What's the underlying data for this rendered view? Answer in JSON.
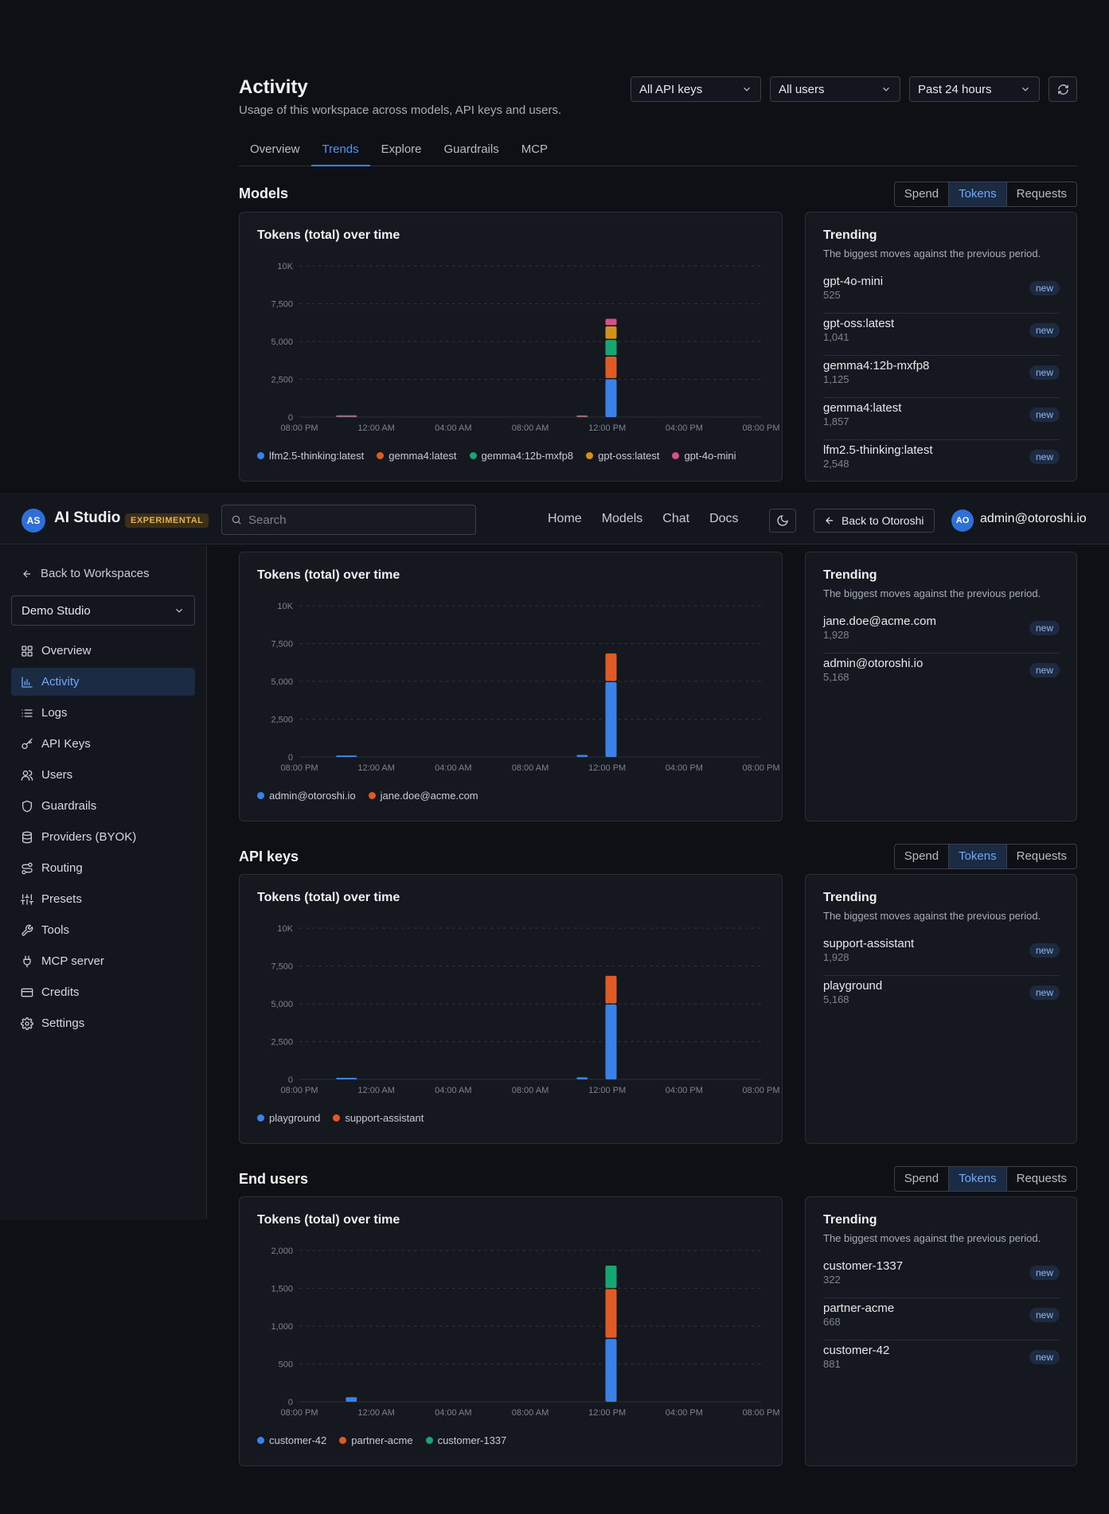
{
  "header": {
    "title": "Activity",
    "subtitle": "Usage of this workspace across models, API keys and users.",
    "filters": {
      "api_keys": "All API keys",
      "users": "All users",
      "range": "Past 24 hours"
    }
  },
  "tabs": [
    {
      "label": "Overview",
      "active": false
    },
    {
      "label": "Trends",
      "active": true
    },
    {
      "label": "Explore",
      "active": false
    },
    {
      "label": "Guardrails",
      "active": false
    },
    {
      "label": "MCP",
      "active": false
    }
  ],
  "segment": {
    "spend": "Spend",
    "tokens": "Tokens",
    "requests": "Requests",
    "selected": "Tokens"
  },
  "common": {
    "chart_title": "Tokens (total) over time",
    "trending_title": "Trending",
    "trending_sub": "The biggest moves against the previous period.",
    "badge": "new"
  },
  "sections": {
    "models": {
      "title": "Models",
      "trending": [
        {
          "name": "gpt-4o-mini",
          "value": "525"
        },
        {
          "name": "gpt-oss:latest",
          "value": "1,041"
        },
        {
          "name": "gemma4:12b-mxfp8",
          "value": "1,125"
        },
        {
          "name": "gemma4:latest",
          "value": "1,857"
        },
        {
          "name": "lfm2.5-thinking:latest",
          "value": "2,548"
        }
      ]
    },
    "users": {
      "trending": [
        {
          "name": "jane.doe@acme.com",
          "value": "1,928"
        },
        {
          "name": "admin@otoroshi.io",
          "value": "5,168"
        }
      ]
    },
    "api_keys": {
      "title": "API keys",
      "trending": [
        {
          "name": "support-assistant",
          "value": "1,928"
        },
        {
          "name": "playground",
          "value": "5,168"
        }
      ]
    },
    "end_users": {
      "title": "End users",
      "trending": [
        {
          "name": "customer-1337",
          "value": "322"
        },
        {
          "name": "partner-acme",
          "value": "668"
        },
        {
          "name": "customer-42",
          "value": "881"
        }
      ]
    }
  },
  "chart_data": [
    {
      "type": "bar",
      "stacked": true,
      "title": "Tokens (total) over time",
      "x_ticks": [
        "08:00 PM",
        "12:00 AM",
        "04:00 AM",
        "08:00 AM",
        "12:00 PM",
        "04:00 PM",
        "08:00 PM"
      ],
      "y_ticks": [
        "0",
        "2,500",
        "5,000",
        "7,500",
        "10K"
      ],
      "ylim": [
        0,
        10000
      ],
      "grid": true,
      "legend_position": "bottom",
      "series": [
        {
          "name": "lfm2.5-thinking:latest",
          "color": "#3b82e6",
          "points": [
            {
              "h": 2.2,
              "v": 10
            },
            {
              "h": 2.7,
              "v": 10
            },
            {
              "h": 14.7,
              "v": 5
            },
            {
              "h": 16.2,
              "v": 2500
            }
          ]
        },
        {
          "name": "gemma4:latest",
          "color": "#e05a26",
          "points": [
            {
              "h": 2.2,
              "v": 40
            },
            {
              "h": 2.7,
              "v": 40
            },
            {
              "h": 14.7,
              "v": 100
            },
            {
              "h": 16.2,
              "v": 1500
            }
          ]
        },
        {
          "name": "gemma4:12b-mxfp8",
          "color": "#17a673",
          "points": [
            {
              "h": 16.2,
              "v": 1100
            }
          ]
        },
        {
          "name": "gpt-oss:latest",
          "color": "#d4911a",
          "points": [
            {
              "h": 16.2,
              "v": 900
            }
          ]
        },
        {
          "name": "gpt-4o-mini",
          "color": "#d6508e",
          "points": [
            {
              "h": 16.2,
              "v": 500
            }
          ]
        }
      ]
    },
    {
      "type": "bar",
      "stacked": true,
      "title": "Tokens (total) over time",
      "x_ticks": [
        "08:00 PM",
        "12:00 AM",
        "04:00 AM",
        "08:00 AM",
        "12:00 PM",
        "04:00 PM",
        "08:00 PM"
      ],
      "y_ticks": [
        "0",
        "2,500",
        "5,000",
        "7,500",
        "10K"
      ],
      "ylim": [
        0,
        10000
      ],
      "grid": true,
      "legend_position": "bottom",
      "series": [
        {
          "name": "admin@otoroshi.io",
          "color": "#3b82e6",
          "points": [
            {
              "h": 2.2,
              "v": 60
            },
            {
              "h": 2.7,
              "v": 60
            },
            {
              "h": 14.7,
              "v": 140
            },
            {
              "h": 16.2,
              "v": 4950
            }
          ]
        },
        {
          "name": "jane.doe@acme.com",
          "color": "#e05a26",
          "points": [
            {
              "h": 16.2,
              "v": 1900
            }
          ]
        }
      ]
    },
    {
      "type": "bar",
      "stacked": true,
      "title": "Tokens (total) over time",
      "x_ticks": [
        "08:00 PM",
        "12:00 AM",
        "04:00 AM",
        "08:00 AM",
        "12:00 PM",
        "04:00 PM",
        "08:00 PM"
      ],
      "y_ticks": [
        "0",
        "2,500",
        "5,000",
        "7,500",
        "10K"
      ],
      "ylim": [
        0,
        10000
      ],
      "grid": true,
      "legend_position": "bottom",
      "series": [
        {
          "name": "playground",
          "color": "#3b82e6",
          "points": [
            {
              "h": 2.2,
              "v": 60
            },
            {
              "h": 2.7,
              "v": 60
            },
            {
              "h": 14.7,
              "v": 140
            },
            {
              "h": 16.2,
              "v": 4950
            }
          ]
        },
        {
          "name": "support-assistant",
          "color": "#e05a26",
          "points": [
            {
              "h": 16.2,
              "v": 1900
            }
          ]
        }
      ]
    },
    {
      "type": "bar",
      "stacked": true,
      "title": "Tokens (total) over time",
      "x_ticks": [
        "08:00 PM",
        "12:00 AM",
        "04:00 AM",
        "08:00 AM",
        "12:00 PM",
        "04:00 PM",
        "08:00 PM"
      ],
      "y_ticks": [
        "0",
        "500",
        "1,000",
        "1,500",
        "2,000"
      ],
      "ylim": [
        0,
        2000
      ],
      "grid": true,
      "legend_position": "bottom",
      "series": [
        {
          "name": "customer-42",
          "color": "#3b82e6",
          "points": [
            {
              "h": 2.7,
              "v": 60
            },
            {
              "h": 16.2,
              "v": 830
            }
          ]
        },
        {
          "name": "partner-acme",
          "color": "#e05a26",
          "points": [
            {
              "h": 16.2,
              "v": 660
            }
          ]
        },
        {
          "name": "customer-1337",
          "color": "#17a673",
          "points": [
            {
              "h": 16.2,
              "v": 310
            }
          ]
        }
      ]
    }
  ],
  "nav": {
    "brand": "AI Studio",
    "logo": "AS",
    "badge": "EXPERIMENTAL",
    "search_placeholder": "Search",
    "links": [
      "Home",
      "Models",
      "Chat",
      "Docs"
    ],
    "back": "Back to Otoroshi",
    "user_initials": "AO",
    "user_email": "admin@otoroshi.io"
  },
  "sidebar": {
    "back": "Back to Workspaces",
    "workspace": "Demo Studio",
    "items": [
      {
        "label": "Overview",
        "icon": "grid-icon",
        "active": false
      },
      {
        "label": "Activity",
        "icon": "bar-chart-icon",
        "active": true
      },
      {
        "label": "Logs",
        "icon": "list-icon",
        "active": false
      },
      {
        "label": "API Keys",
        "icon": "key-icon",
        "active": false
      },
      {
        "label": "Users",
        "icon": "users-icon",
        "active": false
      },
      {
        "label": "Guardrails",
        "icon": "shield-icon",
        "active": false
      },
      {
        "label": "Providers (BYOK)",
        "icon": "database-icon",
        "active": false
      },
      {
        "label": "Routing",
        "icon": "route-icon",
        "active": false
      },
      {
        "label": "Presets",
        "icon": "sliders-icon",
        "active": false
      },
      {
        "label": "Tools",
        "icon": "wrench-icon",
        "active": false
      },
      {
        "label": "MCP server",
        "icon": "plug-icon",
        "active": false
      },
      {
        "label": "Credits",
        "icon": "credit-card-icon",
        "active": false
      },
      {
        "label": "Settings",
        "icon": "gear-icon",
        "active": false
      }
    ]
  }
}
